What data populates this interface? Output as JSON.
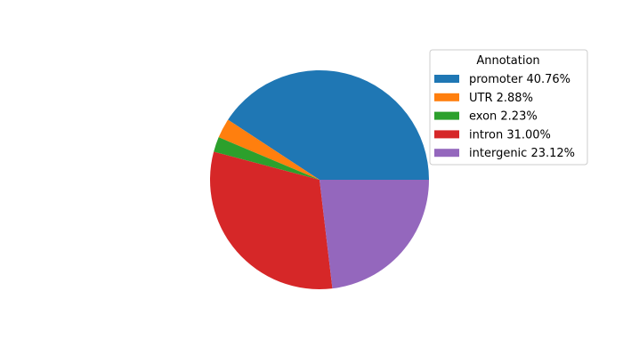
{
  "chart_data": {
    "type": "pie",
    "categories": [
      "promoter",
      "UTR",
      "exon",
      "intron",
      "intergenic"
    ],
    "values": [
      40.76,
      2.88,
      2.23,
      31.0,
      23.12
    ],
    "labels": [
      "promoter 40.76%",
      "UTR 2.88%",
      "exon 2.23%",
      "intron 31.00%",
      "intergenic 23.12%"
    ],
    "colors": [
      "#1f77b4",
      "#ff7f0e",
      "#2ca02c",
      "#d62728",
      "#9467bd"
    ],
    "start_angle_deg": 0,
    "direction": "counterclockwise",
    "legend": {
      "title": "Annotation",
      "placement": "upper-right"
    }
  }
}
